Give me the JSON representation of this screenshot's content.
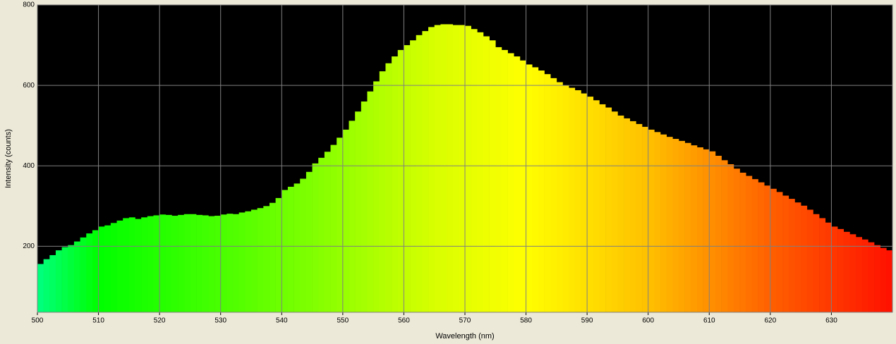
{
  "chart_data": {
    "type": "spectrum",
    "xlabel": "Wavelength (nm)",
    "ylabel": "Intensity (counts)",
    "xlim": [
      500,
      640
    ],
    "ylim": [
      36,
      800
    ],
    "xticks": [
      500,
      510,
      520,
      530,
      540,
      550,
      560,
      570,
      580,
      590,
      600,
      610,
      620,
      630
    ],
    "yticks": [
      200,
      400,
      600,
      800
    ],
    "grid": true,
    "colorscale": [
      {
        "value": 500,
        "color": "#00ff80"
      },
      {
        "value": 510,
        "color": "#00ff00"
      },
      {
        "value": 545,
        "color": "#80ff00"
      },
      {
        "value": 565,
        "color": "#d8ff00"
      },
      {
        "value": 580,
        "color": "#ffff00"
      },
      {
        "value": 600,
        "color": "#ffc000"
      },
      {
        "value": 620,
        "color": "#ff6000"
      },
      {
        "value": 640,
        "color": "#ff1000"
      }
    ],
    "x": [
      500,
      501,
      502,
      503,
      504,
      505,
      506,
      507,
      508,
      509,
      510,
      511,
      512,
      513,
      514,
      515,
      516,
      517,
      518,
      519,
      520,
      521,
      522,
      523,
      524,
      525,
      526,
      527,
      528,
      529,
      530,
      531,
      532,
      533,
      534,
      535,
      536,
      537,
      538,
      539,
      540,
      541,
      542,
      543,
      544,
      545,
      546,
      547,
      548,
      549,
      550,
      551,
      552,
      553,
      554,
      555,
      556,
      557,
      558,
      559,
      560,
      561,
      562,
      563,
      564,
      565,
      566,
      567,
      568,
      569,
      570,
      571,
      572,
      573,
      574,
      575,
      576,
      577,
      578,
      579,
      580,
      581,
      582,
      583,
      584,
      585,
      586,
      587,
      588,
      589,
      590,
      591,
      592,
      593,
      594,
      595,
      596,
      597,
      598,
      599,
      600,
      601,
      602,
      603,
      604,
      605,
      606,
      607,
      608,
      609,
      610,
      611,
      612,
      613,
      614,
      615,
      616,
      617,
      618,
      619,
      620,
      621,
      622,
      623,
      624,
      625,
      626,
      627,
      628,
      629,
      630,
      631,
      632,
      633,
      634,
      635,
      636,
      637,
      638,
      639
    ],
    "values": [
      156,
      168,
      178,
      190,
      198,
      203,
      212,
      222,
      232,
      240,
      249,
      252,
      258,
      264,
      270,
      272,
      268,
      272,
      275,
      277,
      279,
      278,
      276,
      278,
      280,
      280,
      278,
      277,
      275,
      276,
      279,
      281,
      280,
      284,
      287,
      291,
      295,
      300,
      308,
      320,
      340,
      348,
      356,
      368,
      385,
      406,
      420,
      435,
      452,
      470,
      490,
      512,
      535,
      560,
      585,
      610,
      635,
      655,
      672,
      688,
      700,
      712,
      725,
      735,
      745,
      750,
      752,
      752,
      750,
      750,
      748,
      740,
      732,
      722,
      712,
      695,
      688,
      680,
      672,
      662,
      652,
      645,
      637,
      628,
      618,
      608,
      600,
      594,
      588,
      580,
      572,
      563,
      553,
      545,
      535,
      525,
      518,
      511,
      504,
      497,
      490,
      484,
      478,
      472,
      467,
      462,
      457,
      451,
      446,
      441,
      436,
      425,
      414,
      404,
      393,
      383,
      375,
      367,
      359,
      351,
      343,
      335,
      326,
      318,
      309,
      301,
      291,
      280,
      270,
      259,
      249,
      243,
      236,
      230,
      223,
      217,
      210,
      203,
      196,
      190
    ]
  }
}
